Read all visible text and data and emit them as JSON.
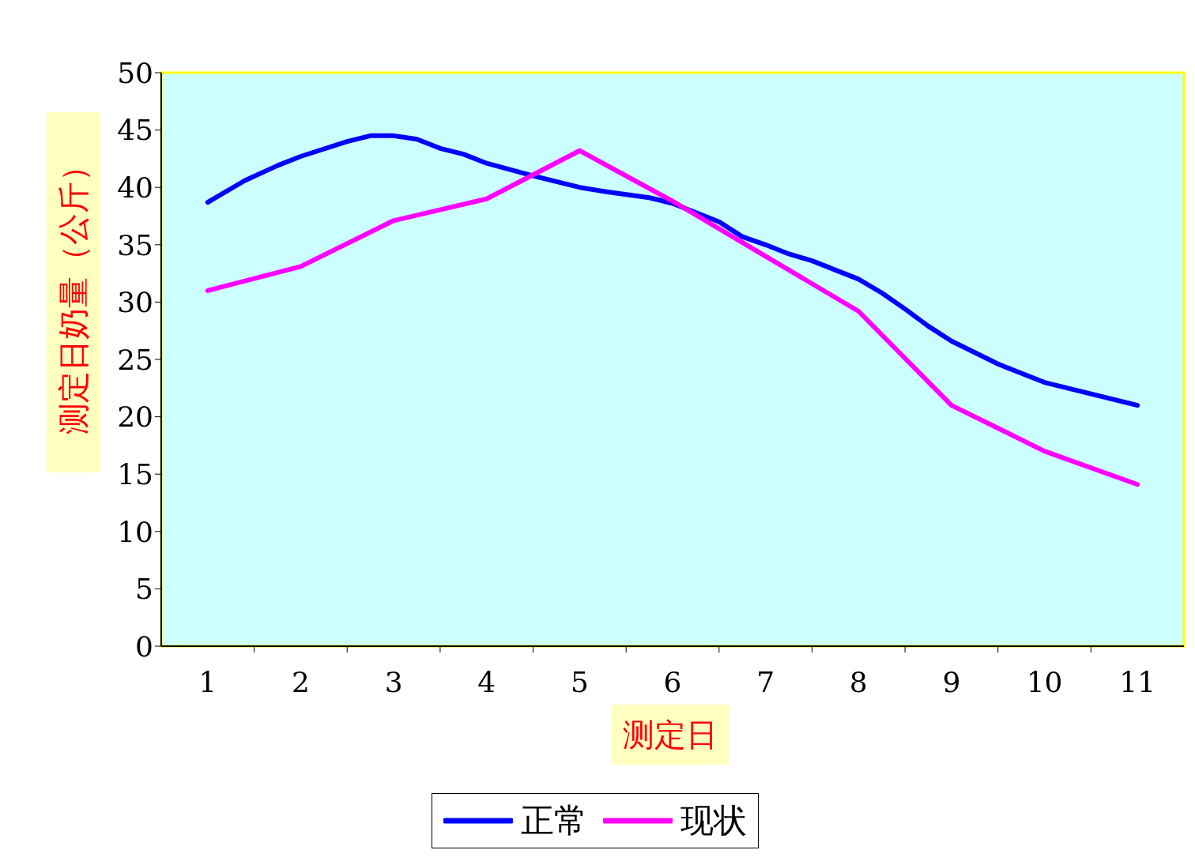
{
  "chart_data": {
    "type": "line",
    "xlabel": "测定日",
    "ylabel": "测定日奶量（公斤）",
    "xlim": [
      0.5,
      11.5
    ],
    "xticks": [
      {
        "value": 1,
        "label": "1"
      },
      {
        "value": 1.5,
        "label": null
      },
      {
        "value": 2,
        "label": "2"
      },
      {
        "value": 2.5,
        "label": null
      },
      {
        "value": 3,
        "label": "3"
      },
      {
        "value": 3.5,
        "label": null
      },
      {
        "value": 4,
        "label": "4"
      },
      {
        "value": 4.5,
        "label": null
      },
      {
        "value": 5,
        "label": "5"
      },
      {
        "value": 5.5,
        "label": null
      },
      {
        "value": 6,
        "label": "6"
      },
      {
        "value": 6.5,
        "label": null
      },
      {
        "value": 7,
        "label": "7"
      },
      {
        "value": 7.5,
        "label": null
      },
      {
        "value": 8,
        "label": "8"
      },
      {
        "value": 8.5,
        "label": null
      },
      {
        "value": 9,
        "label": "9"
      },
      {
        "value": 9.5,
        "label": null
      },
      {
        "value": 10,
        "label": "10"
      },
      {
        "value": 10.5,
        "label": null
      },
      {
        "value": 11,
        "label": "11"
      }
    ],
    "ylim": [
      0,
      50
    ],
    "yticks": [
      0,
      5,
      10,
      15,
      20,
      25,
      30,
      35,
      40,
      45,
      50
    ],
    "legend": "bottom",
    "marker": "none",
    "line_style": "solid",
    "series": [
      {
        "name": "正常",
        "color": "#0000ff",
        "x": [
          1,
          1.4,
          1.75,
          2,
          2.5,
          2.75,
          3,
          3.25,
          3.5,
          3.75,
          4,
          4.5,
          5,
          5.3,
          5.75,
          6,
          6.5,
          6.75,
          7,
          7.25,
          7.5,
          8,
          8.25,
          8.5,
          8.75,
          9,
          9.5,
          10,
          11
        ],
        "values": [
          38.7,
          40.6,
          41.9,
          42.7,
          44.0,
          44.5,
          44.5,
          44.2,
          43.4,
          42.9,
          42.1,
          41.0,
          40.0,
          39.6,
          39.1,
          38.6,
          37.0,
          35.7,
          35.0,
          34.2,
          33.6,
          32.0,
          30.8,
          29.4,
          27.9,
          26.6,
          24.6,
          23.0,
          21.0
        ]
      },
      {
        "name": "现状",
        "color": "#ff00ff",
        "x": [
          1,
          2,
          3,
          4,
          5,
          6,
          7,
          8,
          9,
          10,
          11
        ],
        "values": [
          31.0,
          33.1,
          37.1,
          39.0,
          43.2,
          38.8,
          34.0,
          29.2,
          21.0,
          17.0,
          14.1
        ]
      }
    ]
  }
}
